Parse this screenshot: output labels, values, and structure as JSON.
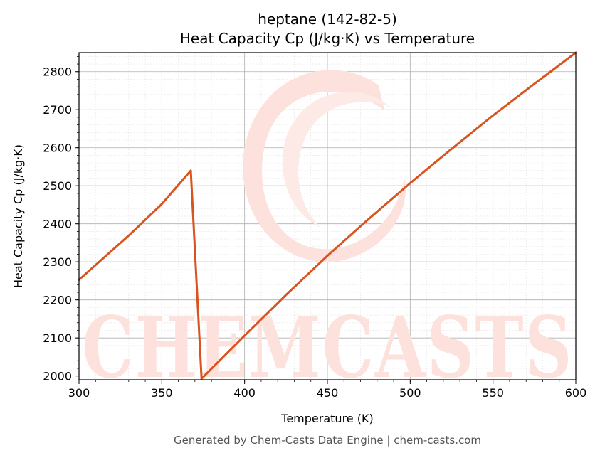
{
  "chart_data": {
    "type": "line",
    "title": "heptane (142-82-5)",
    "subtitle": "Heat Capacity Cp (J/kg·K) vs Temperature",
    "xlabel": "Temperature (K)",
    "ylabel": "Heat Capacity Cp (J/kg·K)",
    "xlim": [
      300,
      600
    ],
    "ylim": [
      1990,
      2850
    ],
    "xticks": [
      300,
      350,
      400,
      450,
      500,
      550,
      600
    ],
    "yticks": [
      2000,
      2100,
      2200,
      2300,
      2400,
      2500,
      2600,
      2700,
      2800
    ],
    "grid": true,
    "series": [
      {
        "color": "#d9531e",
        "x": [
          300,
          330,
          350,
          367.5,
          374,
          400,
          425,
          450,
          475,
          500,
          525,
          550,
          575,
          600
        ],
        "y": [
          2253,
          2369,
          2452,
          2540,
          1993,
          2106,
          2213,
          2316,
          2413,
          2507,
          2597,
          2685,
          2768,
          2850
        ]
      }
    ]
  },
  "watermark": {
    "text": "CHEMCASTS",
    "color": "#fde1dc"
  },
  "footer": "Generated by Chem-Casts Data Engine | chem-casts.com"
}
